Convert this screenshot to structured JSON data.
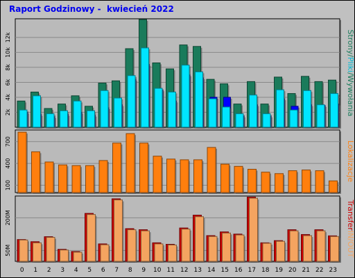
{
  "title": "Raport Godzinowy -  kwiecień 2022",
  "colors": {
    "background": "#c0c0c0",
    "plot_background": "#bababa",
    "strony": "#1a7b5b",
    "pliki": "#00e5ff",
    "wywolania": "#0000ff",
    "lokalizacje": "#ff7f0e",
    "transfer_in": "#cc0000",
    "transfer_out": "#f4a460"
  },
  "chart_data": [
    {
      "type": "bar",
      "panel": "top",
      "categories": [
        "0",
        "1",
        "2",
        "3",
        "4",
        "5",
        "6",
        "7",
        "8",
        "9",
        "10",
        "11",
        "12",
        "13",
        "14",
        "15",
        "16",
        "17",
        "18",
        "19",
        "20",
        "21",
        "22",
        "23"
      ],
      "yticks": [
        "2k",
        "4k",
        "6k",
        "8k",
        "10k",
        "12k"
      ],
      "ylim": [
        0,
        14500
      ],
      "legend_parts": [
        {
          "text": "Strony",
          "color": "#1a7b5b"
        },
        {
          "text": "/",
          "color": "#1a7b5b"
        },
        {
          "text": "Pliki",
          "color": "#00bcd4"
        },
        {
          "text": "/",
          "color": "#1a7b5b"
        },
        {
          "text": "Wywołania",
          "color": "#1a7b5b"
        }
      ],
      "series": [
        {
          "name": "Strony",
          "values": [
            3500,
            4700,
            2500,
            3100,
            4200,
            2800,
            5900,
            6200,
            10500,
            14400,
            8600,
            7800,
            11000,
            10800,
            6400,
            5800,
            3100,
            6100,
            3100,
            6700,
            4500,
            6800,
            6100,
            6300
          ]
        },
        {
          "name": "Pliki",
          "values": [
            2300,
            4200,
            1800,
            2200,
            3500,
            2200,
            4900,
            3900,
            6900,
            10600,
            5200,
            4700,
            8300,
            7400,
            3800,
            2700,
            1800,
            4300,
            1800,
            5000,
            2300,
            4900,
            3000,
            4500
          ]
        },
        {
          "name": "Wywołania",
          "values": [
            2000,
            1700,
            1400,
            1700,
            2000,
            1600,
            2600,
            3000,
            6400,
            8400,
            5000,
            3500,
            7000,
            6600,
            4000,
            4000,
            1500,
            3000,
            1500,
            3800,
            2800,
            3000,
            2900,
            3100
          ]
        }
      ]
    },
    {
      "type": "bar",
      "panel": "middle",
      "categories": [
        "0",
        "1",
        "2",
        "3",
        "4",
        "5",
        "6",
        "7",
        "8",
        "9",
        "10",
        "11",
        "12",
        "13",
        "14",
        "15",
        "16",
        "17",
        "18",
        "19",
        "20",
        "21",
        "22",
        "23"
      ],
      "yticks": [
        "100",
        "400",
        "700"
      ],
      "ylim": [
        0,
        860
      ],
      "legend_parts": [
        {
          "text": "Lokalizacje",
          "color": "#ff7f0e"
        }
      ],
      "series": [
        {
          "name": "Lokalizacje",
          "values": [
            830,
            560,
            420,
            380,
            370,
            370,
            440,
            680,
            810,
            680,
            500,
            460,
            450,
            450,
            620,
            390,
            360,
            320,
            280,
            260,
            300,
            310,
            300,
            160
          ]
        }
      ]
    },
    {
      "type": "bar",
      "panel": "bottom",
      "categories": [
        "0",
        "1",
        "2",
        "3",
        "4",
        "5",
        "6",
        "7",
        "8",
        "9",
        "10",
        "11",
        "12",
        "13",
        "14",
        "15",
        "16",
        "17",
        "18",
        "19",
        "20",
        "21",
        "22",
        "23"
      ],
      "yticks": [
        "50M",
        "200M"
      ],
      "ylim": [
        0,
        300
      ],
      "legend_parts": [
        {
          "text": "Transfer",
          "color": "#cc0000"
        },
        {
          "text": "IN",
          "color": "#f4a460"
        },
        {
          "text": "/OUT",
          "color": "#f4a460"
        }
      ],
      "series": [
        {
          "name": "IN",
          "values": [
            100,
            90,
            113,
            55,
            45,
            220,
            80,
            287,
            150,
            145,
            85,
            78,
            153,
            212,
            118,
            135,
            125,
            295,
            85,
            95,
            145,
            123,
            145,
            117
          ]
        },
        {
          "name": "OUT",
          "values": [
            98,
            85,
            110,
            52,
            42,
            215,
            76,
            282,
            145,
            140,
            80,
            75,
            148,
            205,
            114,
            130,
            121,
            290,
            83,
            92,
            140,
            118,
            140,
            114
          ]
        }
      ]
    }
  ]
}
